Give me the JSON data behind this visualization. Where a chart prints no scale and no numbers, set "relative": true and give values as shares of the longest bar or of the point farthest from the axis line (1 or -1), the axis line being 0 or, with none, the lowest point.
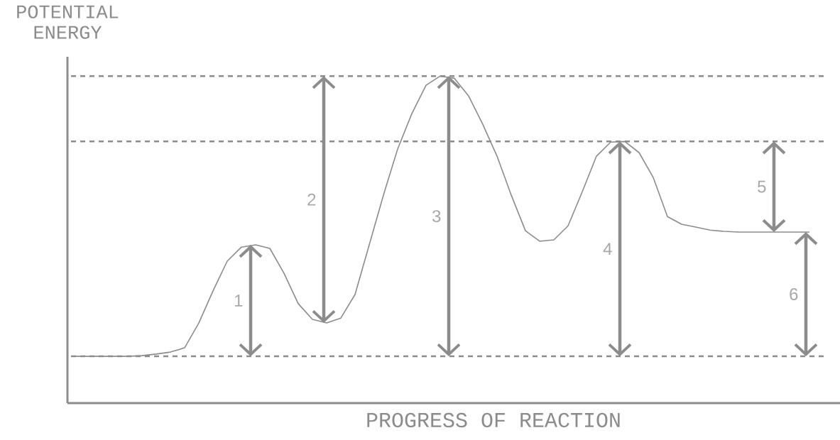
{
  "chart_data": {
    "type": "line",
    "relative": true,
    "xlabel": "PROGRESS OF REACTION",
    "ylabel": "POTENTIAL ENERGY",
    "categories": [
      null,
      null,
      null,
      null,
      null,
      null,
      null,
      null,
      null,
      null,
      null,
      null,
      null,
      null,
      null,
      null,
      null,
      null,
      null,
      null,
      null,
      null,
      null,
      null,
      null,
      null,
      null,
      null,
      null,
      null,
      null,
      null,
      null,
      null,
      null,
      null,
      null,
      null,
      null,
      null,
      null,
      null,
      null,
      null,
      null,
      null,
      null,
      null,
      null,
      null,
      null,
      null,
      null
    ],
    "series": [
      {
        "color": "#8c8c8c",
        "values": [
          0.143,
          0.143,
          0.143,
          0.143,
          0.143,
          0.145,
          0.15,
          0.156,
          0.169,
          0.245,
          0.343,
          0.434,
          0.477,
          0.484,
          0.473,
          0.397,
          0.304,
          0.256,
          0.245,
          0.26,
          0.332,
          0.484,
          0.636,
          0.777,
          0.885,
          0.972,
          1.0,
          0.993,
          0.939,
          0.852,
          0.755,
          0.636,
          0.527,
          0.495,
          0.499,
          0.542,
          0.646,
          0.755,
          0.798,
          0.8,
          0.766,
          0.69,
          0.57,
          0.547,
          0.538,
          0.529,
          0.525,
          0.523,
          0.523,
          0.523,
          0.523,
          0.523,
          0.523
        ]
      }
    ],
    "ref_lines": [
      {
        "axis": "y",
        "value": 0.143,
        "color": "#8c8c8c",
        "line_style": "dashed"
      },
      {
        "axis": "y",
        "value": 1.0,
        "color": "#8c8c8c",
        "line_style": "dashed"
      },
      {
        "axis": "y",
        "value": 0.8,
        "color": "#8c8c8c",
        "line_style": "dashed"
      }
    ],
    "annotations": [
      "1",
      "2",
      "3",
      "4",
      "5",
      "6"
    ],
    "marker": "none",
    "line_style": "solid"
  }
}
